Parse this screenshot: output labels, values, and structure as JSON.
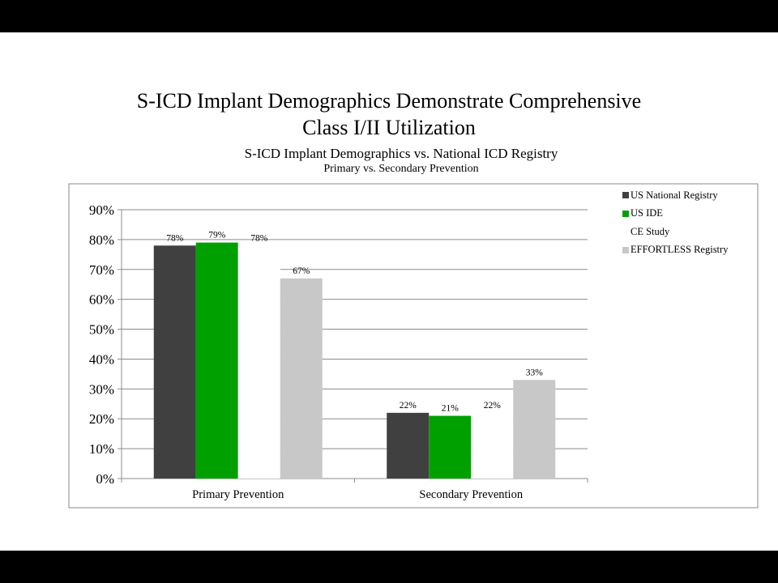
{
  "slide": {
    "title_line1": "S-ICD Implant Demographics Demonstrate Comprehensive",
    "title_line2": "Class I/II Utilization"
  },
  "chart_data": {
    "type": "bar",
    "title": "S-ICD Implant Demographics vs. National ICD Registry",
    "subtitle": "Primary vs. Secondary Prevention",
    "categories": [
      "Primary Prevention",
      "Secondary Prevention"
    ],
    "series": [
      {
        "name": "US National Registry",
        "values": [
          78,
          22
        ],
        "labels": [
          "78%",
          "22%"
        ],
        "color": "#404040"
      },
      {
        "name": "US IDE",
        "values": [
          79,
          21
        ],
        "labels": [
          "79%",
          "21%"
        ],
        "color": "#00a000"
      },
      {
        "name": "CE Study",
        "values": [
          78,
          22
        ],
        "labels": [
          "78%",
          "22%"
        ],
        "color": "#ffffff"
      },
      {
        "name": "EFFORTLESS Registry",
        "values": [
          67,
          33
        ],
        "labels": [
          "67%",
          "33%"
        ],
        "color": "#c8c8c8"
      }
    ],
    "ylim": [
      0,
      90
    ],
    "yticks": [
      "0%",
      "10%",
      "20%",
      "30%",
      "40%",
      "50%",
      "60%",
      "70%",
      "80%",
      "90%"
    ],
    "grid": true,
    "legend": "right"
  }
}
